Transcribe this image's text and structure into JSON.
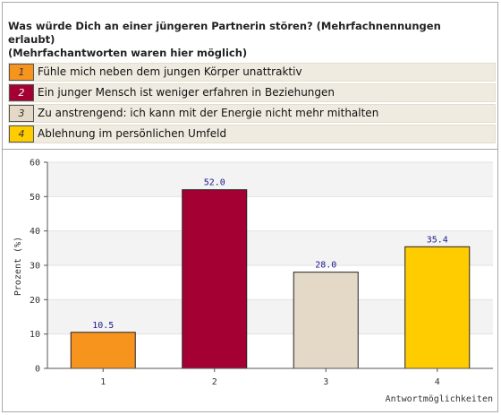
{
  "question": {
    "line1": "Was würde Dich an einer jüngeren Partnerin stören? (Mehrfachnennungen erlaubt)",
    "line2": "(Mehrfachantworten waren hier möglich)"
  },
  "legend": [
    {
      "num": "1",
      "label": "Fühle mich neben dem jungen Körper unattraktiv",
      "color": "#f7941d",
      "text_color": "#333333"
    },
    {
      "num": "2",
      "label": "Ein junger Mensch ist weniger erfahren in Beziehungen",
      "color": "#a50034",
      "text_color": "#ffffff"
    },
    {
      "num": "3",
      "label": "Zu anstrengend: ich kann mit der Energie nicht mehr mithalten",
      "color": "#e3d9c6",
      "text_color": "#333333"
    },
    {
      "num": "4",
      "label": "Ablehnung im persönlichen Umfeld",
      "color": "#ffcc00",
      "text_color": "#333333"
    }
  ],
  "chart_data": {
    "type": "bar",
    "categories": [
      "1",
      "2",
      "3",
      "4"
    ],
    "values": [
      10.5,
      52.0,
      28.0,
      35.4
    ],
    "value_labels": [
      "10.5",
      "52.0",
      "28.0",
      "35.4"
    ],
    "colors": [
      "#f7941d",
      "#a50034",
      "#e3d9c6",
      "#ffcc00"
    ],
    "ylabel": "Prozent (%)",
    "xlabel": "Antwortmöglichkeiten",
    "ylim": [
      0,
      60
    ],
    "yticks": [
      0,
      10,
      20,
      30,
      40,
      50,
      60
    ],
    "grid": true
  }
}
